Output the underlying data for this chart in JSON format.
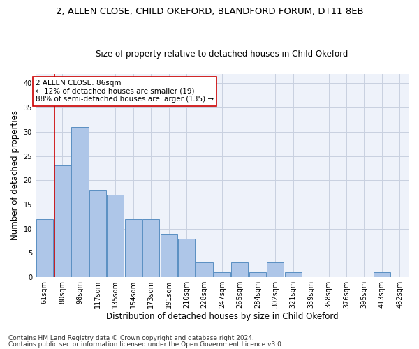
{
  "title": "2, ALLEN CLOSE, CHILD OKEFORD, BLANDFORD FORUM, DT11 8EB",
  "subtitle": "Size of property relative to detached houses in Child Okeford",
  "xlabel": "Distribution of detached houses by size in Child Okeford",
  "ylabel": "Number of detached properties",
  "categories": [
    "61sqm",
    "80sqm",
    "98sqm",
    "117sqm",
    "135sqm",
    "154sqm",
    "173sqm",
    "191sqm",
    "210sqm",
    "228sqm",
    "247sqm",
    "265sqm",
    "284sqm",
    "302sqm",
    "321sqm",
    "339sqm",
    "358sqm",
    "376sqm",
    "395sqm",
    "413sqm",
    "432sqm"
  ],
  "values": [
    12,
    23,
    31,
    18,
    17,
    12,
    12,
    9,
    8,
    3,
    1,
    3,
    1,
    3,
    1,
    0,
    0,
    0,
    0,
    1,
    0
  ],
  "bar_color": "#aec6e8",
  "bar_edge_color": "#5a8fc2",
  "annotation_text": "2 ALLEN CLOSE: 86sqm\n← 12% of detached houses are smaller (19)\n88% of semi-detached houses are larger (135) →",
  "annotation_box_color": "#ffffff",
  "annotation_box_edge_color": "#cc0000",
  "vline_x": 0.575,
  "ylim": [
    0,
    42
  ],
  "yticks": [
    0,
    5,
    10,
    15,
    20,
    25,
    30,
    35,
    40
  ],
  "grid_color": "#c8d0e0",
  "background_color": "#eef2fa",
  "footer1": "Contains HM Land Registry data © Crown copyright and database right 2024.",
  "footer2": "Contains public sector information licensed under the Open Government Licence v3.0.",
  "title_fontsize": 9.5,
  "subtitle_fontsize": 8.5,
  "xlabel_fontsize": 8.5,
  "ylabel_fontsize": 8.5,
  "tick_fontsize": 7,
  "annotation_fontsize": 7.5,
  "footer_fontsize": 6.5
}
